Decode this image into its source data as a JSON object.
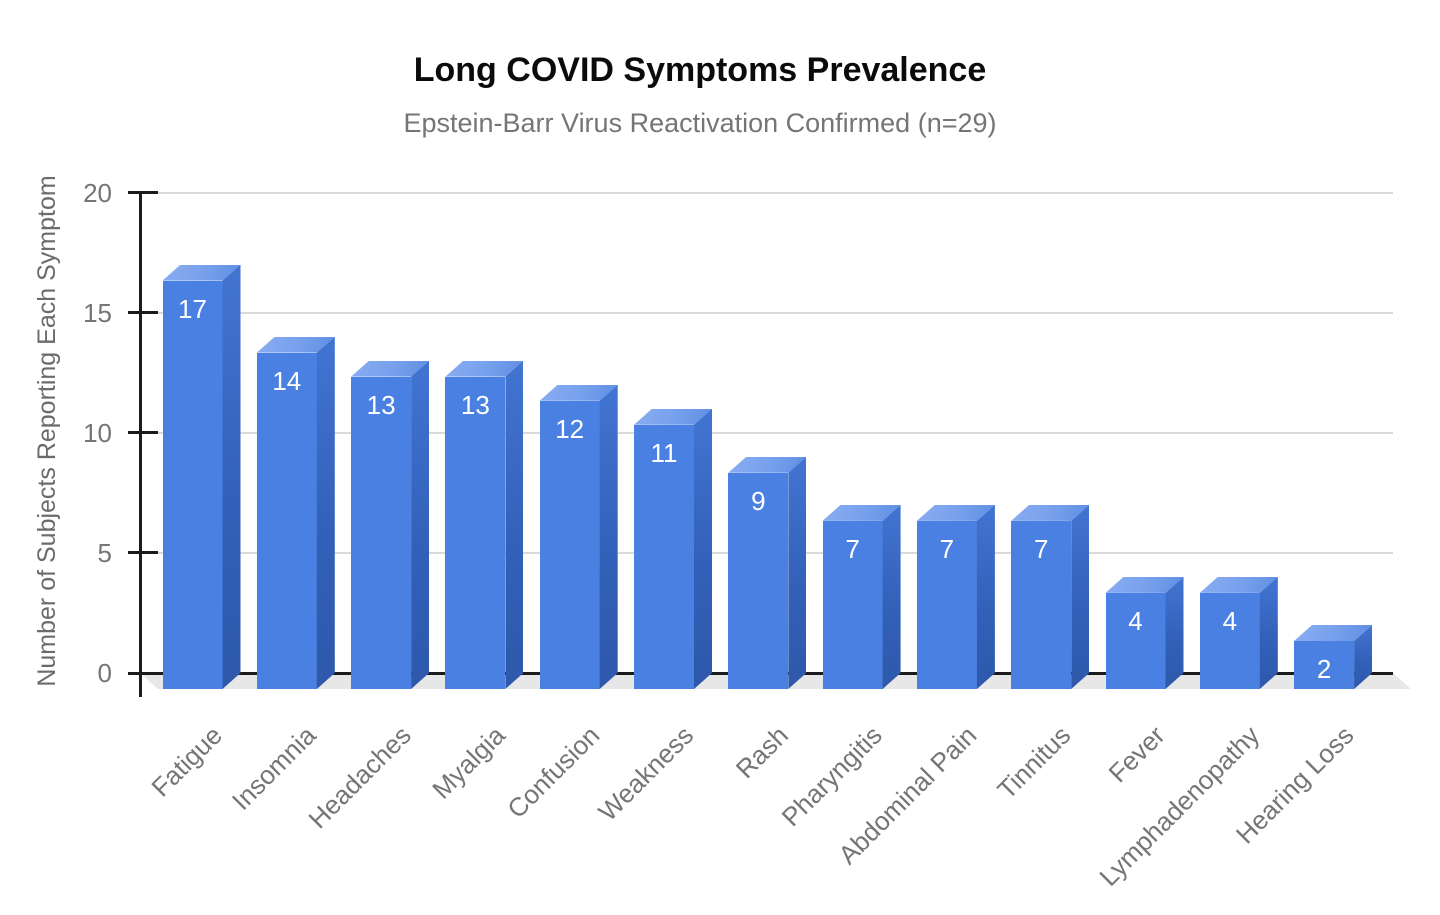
{
  "chart_data": {
    "type": "bar",
    "style": "3d-column",
    "title": "Long COVID Symptoms Prevalence",
    "subtitle": "Epstein-Barr Virus Reactivation Confirmed (n=29)",
    "xlabel": "",
    "ylabel": "Number of Subjects Reporting Each Symptom",
    "categories": [
      "Fatigue",
      "Insomnia",
      "Headaches",
      "Myalgia",
      "Confusion",
      "Weakness",
      "Rash",
      "Pharyngitis",
      "Abdominal Pain",
      "Tinnitus",
      "Fever",
      "Lymphadenopathy",
      "Hearing Loss"
    ],
    "values": [
      17,
      14,
      13,
      13,
      12,
      11,
      9,
      7,
      7,
      7,
      4,
      4,
      2
    ],
    "yticks": [
      0,
      5,
      10,
      15,
      20
    ],
    "ylim": [
      0,
      20
    ],
    "grid": true,
    "legend_position": "none",
    "colors": {
      "bar_front": "#4a80e2",
      "bar_top": "#7fa6ee",
      "bar_side": "#3566bf",
      "value_label": "#ffffff",
      "axis": "#1b1b1b",
      "gridline": "#dadada",
      "tick_text": "#757575",
      "title_text": "#0b0b0b",
      "subtitle_text": "#757575",
      "floor": "#e7e7e7"
    }
  }
}
